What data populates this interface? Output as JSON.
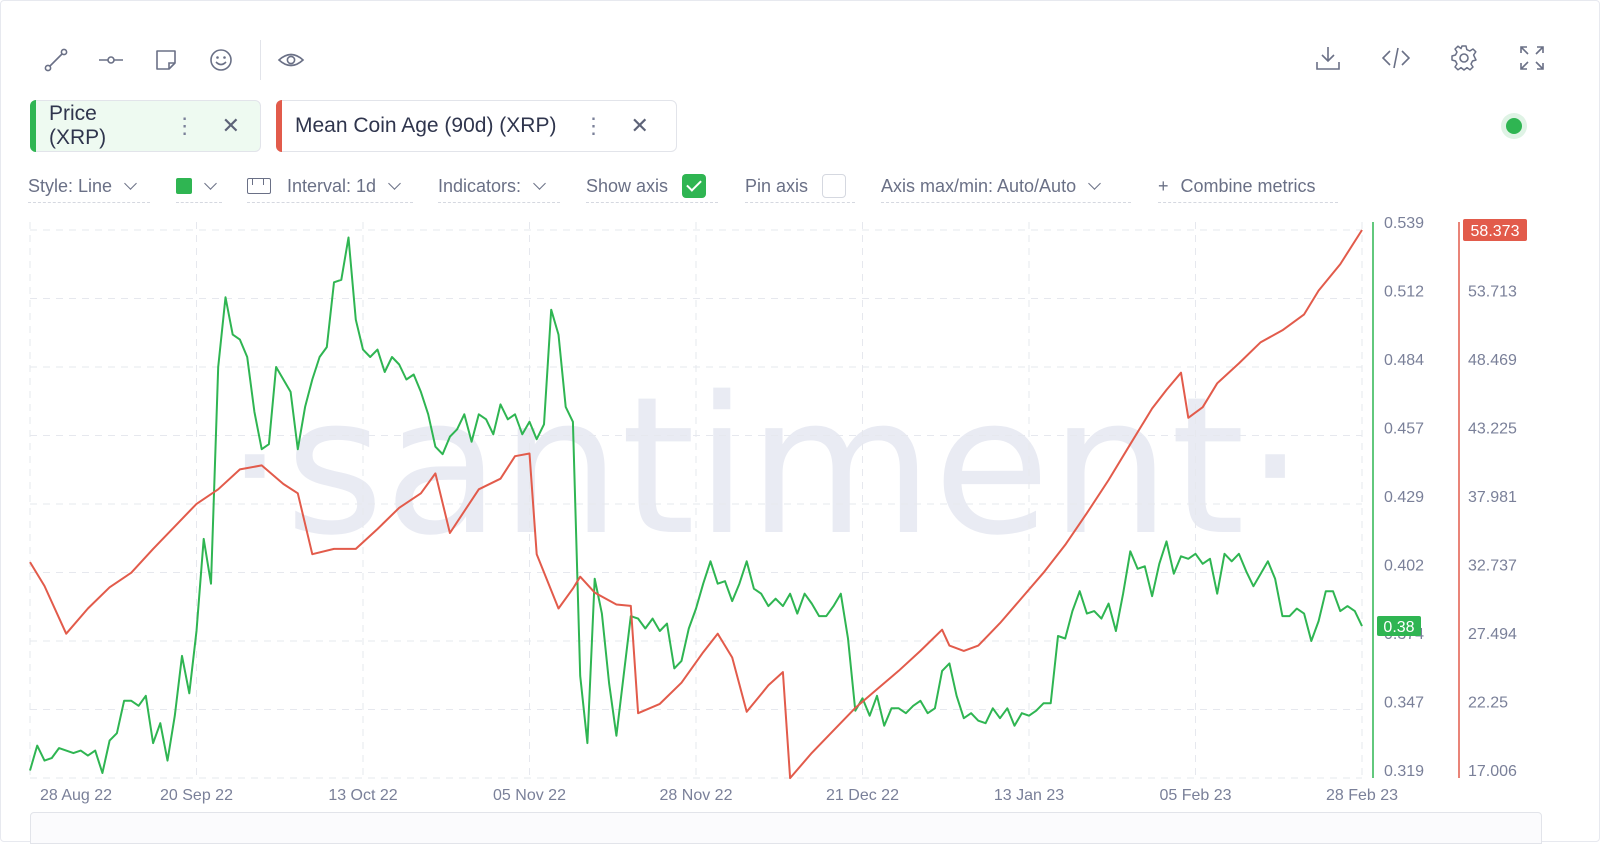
{
  "toolbar": {
    "left_icons": [
      "draw-line-icon",
      "horizontal-ray-icon",
      "note-icon",
      "emoji-icon",
      "eye-icon"
    ],
    "right_icons": [
      "download-icon",
      "embed-code-icon",
      "settings-gear-icon",
      "fullscreen-icon"
    ]
  },
  "metrics": [
    {
      "label": "Price (XRP)",
      "color": "#2fb552"
    },
    {
      "label": "Mean Coin Age (90d) (XRP)",
      "color": "#e25b4b"
    }
  ],
  "settings": {
    "style": "Style: Line",
    "interval": "Interval: 1d",
    "indicators": "Indicators:",
    "show_axis": "Show axis",
    "show_axis_checked": true,
    "pin_axis": "Pin axis",
    "pin_axis_checked": false,
    "axis_maxmin": "Axis max/min: Auto/Auto",
    "combine": "Combine metrics"
  },
  "chart_data": {
    "type": "line",
    "watermark": "·santiment·",
    "x_ticks": [
      "28 Aug 22",
      "20 Sep 22",
      "13 Oct 22",
      "05 Nov 22",
      "28 Nov 22",
      "21 Dec 22",
      "13 Jan 23",
      "05 Feb 23",
      "28 Feb 23"
    ],
    "x_range": [
      "2022-08-28",
      "2023-02-28"
    ],
    "left_axis_ticks": [
      "0.539",
      "0.512",
      "0.484",
      "0.457",
      "0.429",
      "0.402",
      "0.374",
      "0.347",
      "0.319"
    ],
    "right_axis_ticks": [
      "58.373",
      "53.713",
      "48.469",
      "43.225",
      "37.981",
      "32.737",
      "27.494",
      "22.25",
      "17.006"
    ],
    "y_price_range": [
      0.319,
      0.539
    ],
    "y_age_range": [
      17.006,
      58.373
    ],
    "last_price_label": "0.38",
    "last_age_label": "58.373",
    "grid": true,
    "series": [
      {
        "name": "Price (XRP)",
        "color": "#2fb552",
        "axis": "price",
        "values": [
          [
            "2022-08-28",
            0.322
          ],
          [
            "2022-08-29",
            0.332
          ],
          [
            "2022-08-30",
            0.326
          ],
          [
            "2022-08-31",
            0.327
          ],
          [
            "2022-09-01",
            0.331
          ],
          [
            "2022-09-02",
            0.33
          ],
          [
            "2022-09-03",
            0.329
          ],
          [
            "2022-09-04",
            0.33
          ],
          [
            "2022-09-05",
            0.328
          ],
          [
            "2022-09-06",
            0.33
          ],
          [
            "2022-09-07",
            0.321
          ],
          [
            "2022-09-08",
            0.334
          ],
          [
            "2022-09-09",
            0.337
          ],
          [
            "2022-09-10",
            0.35
          ],
          [
            "2022-09-11",
            0.35
          ],
          [
            "2022-09-12",
            0.348
          ],
          [
            "2022-09-13",
            0.352
          ],
          [
            "2022-09-14",
            0.333
          ],
          [
            "2022-09-15",
            0.341
          ],
          [
            "2022-09-16",
            0.326
          ],
          [
            "2022-09-17",
            0.344
          ],
          [
            "2022-09-18",
            0.368
          ],
          [
            "2022-09-19",
            0.353
          ],
          [
            "2022-09-20",
            0.378
          ],
          [
            "2022-09-21",
            0.415
          ],
          [
            "2022-09-22",
            0.397
          ],
          [
            "2022-09-23",
            0.484
          ],
          [
            "2022-09-24",
            0.512
          ],
          [
            "2022-09-25",
            0.497
          ],
          [
            "2022-09-26",
            0.495
          ],
          [
            "2022-09-27",
            0.488
          ],
          [
            "2022-09-28",
            0.466
          ],
          [
            "2022-09-29",
            0.451
          ],
          [
            "2022-09-30",
            0.453
          ],
          [
            "2022-10-01",
            0.484
          ],
          [
            "2022-10-02",
            0.479
          ],
          [
            "2022-10-03",
            0.474
          ],
          [
            "2022-10-04",
            0.451
          ],
          [
            "2022-10-05",
            0.468
          ],
          [
            "2022-10-06",
            0.479
          ],
          [
            "2022-10-07",
            0.488
          ],
          [
            "2022-10-08",
            0.492
          ],
          [
            "2022-10-09",
            0.518
          ],
          [
            "2022-10-10",
            0.519
          ],
          [
            "2022-10-11",
            0.536
          ],
          [
            "2022-10-12",
            0.503
          ],
          [
            "2022-10-13",
            0.491
          ],
          [
            "2022-10-14",
            0.488
          ],
          [
            "2022-10-15",
            0.491
          ],
          [
            "2022-10-16",
            0.482
          ],
          [
            "2022-10-17",
            0.488
          ],
          [
            "2022-10-18",
            0.485
          ],
          [
            "2022-10-19",
            0.479
          ],
          [
            "2022-10-20",
            0.481
          ],
          [
            "2022-10-21",
            0.474
          ],
          [
            "2022-10-22",
            0.465
          ],
          [
            "2022-10-23",
            0.452
          ],
          [
            "2022-10-24",
            0.449
          ],
          [
            "2022-10-25",
            0.456
          ],
          [
            "2022-10-26",
            0.459
          ],
          [
            "2022-10-27",
            0.465
          ],
          [
            "2022-10-28",
            0.454
          ],
          [
            "2022-10-29",
            0.465
          ],
          [
            "2022-10-30",
            0.463
          ],
          [
            "2022-10-31",
            0.457
          ],
          [
            "2022-11-01",
            0.469
          ],
          [
            "2022-11-02",
            0.463
          ],
          [
            "2022-11-03",
            0.465
          ],
          [
            "2022-11-04",
            0.457
          ],
          [
            "2022-11-05",
            0.462
          ],
          [
            "2022-11-06",
            0.455
          ],
          [
            "2022-11-07",
            0.461
          ],
          [
            "2022-11-08",
            0.507
          ],
          [
            "2022-11-09",
            0.497
          ],
          [
            "2022-11-10",
            0.468
          ],
          [
            "2022-11-11",
            0.462
          ],
          [
            "2022-11-12",
            0.36
          ],
          [
            "2022-11-13",
            0.333
          ],
          [
            "2022-11-14",
            0.399
          ],
          [
            "2022-11-15",
            0.385
          ],
          [
            "2022-11-16",
            0.357
          ],
          [
            "2022-11-17",
            0.336
          ],
          [
            "2022-11-18",
            0.36
          ],
          [
            "2022-11-19",
            0.384
          ],
          [
            "2022-11-20",
            0.383
          ],
          [
            "2022-11-21",
            0.379
          ],
          [
            "2022-11-22",
            0.383
          ],
          [
            "2022-11-23",
            0.378
          ],
          [
            "2022-11-24",
            0.381
          ],
          [
            "2022-11-25",
            0.363
          ],
          [
            "2022-11-26",
            0.366
          ],
          [
            "2022-11-27",
            0.379
          ],
          [
            "2022-11-28",
            0.387
          ],
          [
            "2022-11-29",
            0.397
          ],
          [
            "2022-11-30",
            0.406
          ],
          [
            "2022-12-01",
            0.397
          ],
          [
            "2022-12-02",
            0.398
          ],
          [
            "2022-12-03",
            0.39
          ],
          [
            "2022-12-04",
            0.397
          ],
          [
            "2022-12-05",
            0.406
          ],
          [
            "2022-12-06",
            0.395
          ],
          [
            "2022-12-07",
            0.393
          ],
          [
            "2022-12-08",
            0.388
          ],
          [
            "2022-12-09",
            0.391
          ],
          [
            "2022-12-10",
            0.388
          ],
          [
            "2022-12-11",
            0.393
          ],
          [
            "2022-12-12",
            0.385
          ],
          [
            "2022-12-13",
            0.393
          ],
          [
            "2022-12-14",
            0.389
          ],
          [
            "2022-12-15",
            0.384
          ],
          [
            "2022-12-16",
            0.384
          ],
          [
            "2022-12-17",
            0.388
          ],
          [
            "2022-12-18",
            0.393
          ],
          [
            "2022-12-19",
            0.375
          ],
          [
            "2022-12-20",
            0.346
          ],
          [
            "2022-12-21",
            0.351
          ],
          [
            "2022-12-22",
            0.344
          ],
          [
            "2022-12-23",
            0.352
          ],
          [
            "2022-12-24",
            0.34
          ],
          [
            "2022-12-25",
            0.347
          ],
          [
            "2022-12-26",
            0.347
          ],
          [
            "2022-12-27",
            0.345
          ],
          [
            "2022-12-28",
            0.348
          ],
          [
            "2022-12-29",
            0.35
          ],
          [
            "2022-12-30",
            0.345
          ],
          [
            "2022-12-31",
            0.347
          ],
          [
            "2023-01-01",
            0.362
          ],
          [
            "2023-01-02",
            0.365
          ],
          [
            "2023-01-03",
            0.352
          ],
          [
            "2023-01-04",
            0.343
          ],
          [
            "2023-01-05",
            0.345
          ],
          [
            "2023-01-06",
            0.342
          ],
          [
            "2023-01-07",
            0.341
          ],
          [
            "2023-01-08",
            0.347
          ],
          [
            "2023-01-09",
            0.343
          ],
          [
            "2023-01-10",
            0.347
          ],
          [
            "2023-01-11",
            0.34
          ],
          [
            "2023-01-12",
            0.345
          ],
          [
            "2023-01-13",
            0.344
          ],
          [
            "2023-01-14",
            0.346
          ],
          [
            "2023-01-15",
            0.349
          ],
          [
            "2023-01-16",
            0.349
          ],
          [
            "2023-01-17",
            0.376
          ],
          [
            "2023-01-18",
            0.375
          ],
          [
            "2023-01-19",
            0.386
          ],
          [
            "2023-01-20",
            0.394
          ],
          [
            "2023-01-21",
            0.385
          ],
          [
            "2023-01-22",
            0.386
          ],
          [
            "2023-01-23",
            0.383
          ],
          [
            "2023-01-24",
            0.389
          ],
          [
            "2023-01-25",
            0.378
          ],
          [
            "2023-01-26",
            0.393
          ],
          [
            "2023-01-27",
            0.41
          ],
          [
            "2023-01-28",
            0.403
          ],
          [
            "2023-01-29",
            0.404
          ],
          [
            "2023-01-30",
            0.392
          ],
          [
            "2023-01-31",
            0.405
          ],
          [
            "2023-02-01",
            0.414
          ],
          [
            "2023-02-02",
            0.401
          ],
          [
            "2023-02-03",
            0.408
          ],
          [
            "2023-02-04",
            0.407
          ],
          [
            "2023-02-05",
            0.409
          ],
          [
            "2023-02-06",
            0.405
          ],
          [
            "2023-02-07",
            0.407
          ],
          [
            "2023-02-08",
            0.393
          ],
          [
            "2023-02-09",
            0.409
          ],
          [
            "2023-02-10",
            0.406
          ],
          [
            "2023-02-11",
            0.409
          ],
          [
            "2023-02-12",
            0.402
          ],
          [
            "2023-02-13",
            0.396
          ],
          [
            "2023-02-14",
            0.401
          ],
          [
            "2023-02-15",
            0.406
          ],
          [
            "2023-02-16",
            0.399
          ],
          [
            "2023-02-17",
            0.384
          ],
          [
            "2023-02-18",
            0.384
          ],
          [
            "2023-02-19",
            0.387
          ],
          [
            "2023-02-20",
            0.385
          ],
          [
            "2023-02-21",
            0.374
          ],
          [
            "2023-02-22",
            0.382
          ],
          [
            "2023-02-23",
            0.394
          ],
          [
            "2023-02-24",
            0.394
          ],
          [
            "2023-02-25",
            0.386
          ],
          [
            "2023-02-26",
            0.388
          ],
          [
            "2023-02-27",
            0.386
          ],
          [
            "2023-02-28",
            0.38
          ]
        ]
      },
      {
        "name": "Mean Coin Age (90d) (XRP)",
        "color": "#e25b4b",
        "axis": "age",
        "values": [
          [
            "2022-08-28",
            33.3
          ],
          [
            "2022-08-30",
            31.5
          ],
          [
            "2022-09-02",
            27.9
          ],
          [
            "2022-09-05",
            29.8
          ],
          [
            "2022-09-08",
            31.4
          ],
          [
            "2022-09-11",
            32.5
          ],
          [
            "2022-09-14",
            34.3
          ],
          [
            "2022-09-17",
            36.0
          ],
          [
            "2022-09-20",
            37.7
          ],
          [
            "2022-09-23",
            38.8
          ],
          [
            "2022-09-26",
            40.3
          ],
          [
            "2022-09-29",
            40.6
          ],
          [
            "2022-10-02",
            39.2
          ],
          [
            "2022-10-04",
            38.5
          ],
          [
            "2022-10-06",
            33.9
          ],
          [
            "2022-10-09",
            34.3
          ],
          [
            "2022-10-12",
            34.3
          ],
          [
            "2022-10-15",
            35.8
          ],
          [
            "2022-10-18",
            37.4
          ],
          [
            "2022-10-21",
            38.5
          ],
          [
            "2022-10-23",
            40.0
          ],
          [
            "2022-10-25",
            35.5
          ],
          [
            "2022-10-29",
            38.8
          ],
          [
            "2022-11-01",
            39.6
          ],
          [
            "2022-11-03",
            41.3
          ],
          [
            "2022-11-05",
            41.5
          ],
          [
            "2022-11-06",
            33.9
          ],
          [
            "2022-11-09",
            29.8
          ],
          [
            "2022-11-11",
            31.3
          ],
          [
            "2022-11-12",
            32.2
          ],
          [
            "2022-11-14",
            31.0
          ],
          [
            "2022-11-17",
            30.1
          ],
          [
            "2022-11-19",
            30.0
          ],
          [
            "2022-11-20",
            21.9
          ],
          [
            "2022-11-23",
            22.6
          ],
          [
            "2022-11-26",
            24.2
          ],
          [
            "2022-11-29",
            26.5
          ],
          [
            "2022-12-01",
            27.9
          ],
          [
            "2022-12-03",
            26.1
          ],
          [
            "2022-12-05",
            22.0
          ],
          [
            "2022-12-08",
            24.0
          ],
          [
            "2022-12-10",
            25.0
          ],
          [
            "2022-12-11",
            17.0
          ],
          [
            "2022-12-14",
            18.9
          ],
          [
            "2022-12-17",
            20.6
          ],
          [
            "2022-12-20",
            22.3
          ],
          [
            "2022-12-23",
            23.7
          ],
          [
            "2022-12-26",
            25.1
          ],
          [
            "2022-12-29",
            26.6
          ],
          [
            "2023-01-01",
            28.2
          ],
          [
            "2023-01-02",
            27.0
          ],
          [
            "2023-01-04",
            26.6
          ],
          [
            "2023-01-06",
            27.0
          ],
          [
            "2023-01-09",
            28.7
          ],
          [
            "2023-01-12",
            30.6
          ],
          [
            "2023-01-15",
            32.5
          ],
          [
            "2023-01-18",
            34.6
          ],
          [
            "2023-01-21",
            37.0
          ],
          [
            "2023-01-24",
            39.5
          ],
          [
            "2023-01-27",
            42.2
          ],
          [
            "2023-01-30",
            44.9
          ],
          [
            "2023-02-01",
            46.3
          ],
          [
            "2023-02-03",
            47.6
          ],
          [
            "2023-02-04",
            44.2
          ],
          [
            "2023-02-06",
            45.0
          ],
          [
            "2023-02-08",
            46.8
          ],
          [
            "2023-02-11",
            48.3
          ],
          [
            "2023-02-14",
            49.9
          ],
          [
            "2023-02-17",
            50.8
          ],
          [
            "2023-02-20",
            52.0
          ],
          [
            "2023-02-22",
            53.8
          ],
          [
            "2023-02-25",
            55.8
          ],
          [
            "2023-02-28",
            58.373
          ]
        ]
      }
    ]
  }
}
